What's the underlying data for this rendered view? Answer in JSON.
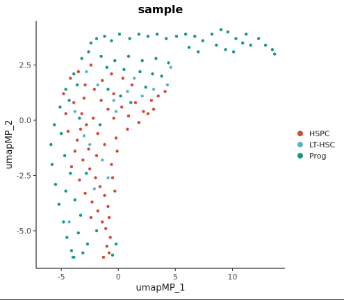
{
  "chart_data": {
    "type": "scatter",
    "title": "sample",
    "xlabel": "umapMP_1",
    "ylabel": "umapMP_2",
    "xlim": [
      -7.2,
      14.6
    ],
    "ylim": [
      -6.7,
      4.5
    ],
    "xticks": [
      -5,
      0,
      5,
      10
    ],
    "yticks": [
      2.5,
      0.0,
      -2.5,
      -5.0
    ],
    "xtick_labels": [
      "-5",
      "0",
      "5",
      "10"
    ],
    "ytick_labels": [
      "2.5",
      "0.0",
      "-2.5",
      "-5.0"
    ],
    "grid": false,
    "legend_position": "right",
    "series": [
      {
        "name": "HSPC",
        "color": "#D04A35",
        "points": [
          [
            -4.2,
            1.9
          ],
          [
            -4.8,
            1.2
          ],
          [
            -3.9,
            0.8
          ],
          [
            -3.2,
            0.3
          ],
          [
            -2.8,
            -0.2
          ],
          [
            -4.4,
            -0.5
          ],
          [
            -3.6,
            -0.9
          ],
          [
            -2.6,
            -1.3
          ],
          [
            -3.1,
            -1.8
          ],
          [
            -2.5,
            -2.2
          ],
          [
            -2.0,
            -2.6
          ],
          [
            -1.6,
            -3.0
          ],
          [
            -1.2,
            -3.4
          ],
          [
            -0.9,
            -3.9
          ],
          [
            -0.8,
            -4.4
          ],
          [
            -1.1,
            -4.9
          ],
          [
            -0.7,
            -5.3
          ],
          [
            -1.0,
            -5.7
          ],
          [
            -0.8,
            -6.0
          ],
          [
            -1.3,
            -6.2
          ],
          [
            -2.1,
            1.4
          ],
          [
            -1.5,
            0.9
          ],
          [
            -0.9,
            0.5
          ],
          [
            -0.4,
            0.1
          ],
          [
            0.3,
            0.6
          ],
          [
            0.9,
            0.2
          ],
          [
            1.5,
            0.8
          ],
          [
            2.2,
            0.4
          ],
          [
            2.9,
            0.9
          ],
          [
            3.5,
            1.1
          ],
          [
            4.1,
            1.3
          ],
          [
            1.2,
            1.6
          ],
          [
            0.4,
            1.9
          ],
          [
            -0.6,
            2.1
          ],
          [
            -1.4,
            1.8
          ],
          [
            -2.9,
            1.6
          ],
          [
            -3.5,
            2.2
          ],
          [
            -2.4,
            2.5
          ],
          [
            0.8,
            -0.4
          ],
          [
            -0.2,
            -0.8
          ],
          [
            -1.8,
            -0.6
          ],
          [
            -2.2,
            0.1
          ],
          [
            -3.8,
            -1.4
          ],
          [
            -4.1,
            -2.1
          ],
          [
            -3.4,
            -2.7
          ],
          [
            -2.9,
            -3.3
          ],
          [
            -2.3,
            -3.7
          ],
          [
            -1.8,
            -4.1
          ],
          [
            -1.4,
            -4.6
          ],
          [
            -0.5,
            -2.6
          ],
          [
            -0.3,
            -3.2
          ],
          [
            -0.6,
            -2.0
          ],
          [
            -0.1,
            -1.4
          ],
          [
            1.8,
            -0.1
          ],
          [
            2.6,
            0.3
          ],
          [
            3.1,
            0.5
          ],
          [
            -1.9,
            -1.6
          ],
          [
            -1.2,
            -1.1
          ],
          [
            -0.4,
            1.2
          ],
          [
            -3.0,
            1.0
          ],
          [
            -4.6,
            0.3
          ],
          [
            -3.3,
            -0.4
          ],
          [
            -2.4,
            -4.4
          ]
        ]
      },
      {
        "name": "LT-HSC",
        "color": "#5AB4C6",
        "points": [
          [
            -2.8,
            2.2
          ],
          [
            -1.8,
            1.6
          ],
          [
            -0.4,
            0.9
          ],
          [
            0.8,
            1.3
          ],
          [
            2.1,
            1.1
          ],
          [
            3.1,
            1.4
          ],
          [
            4.3,
            1.6
          ],
          [
            -3.0,
            -0.7
          ],
          [
            -1.4,
            -1.8
          ],
          [
            -0.9,
            -2.6
          ],
          [
            -2.5,
            -1.1
          ],
          [
            -0.2,
            0.4
          ],
          [
            1.4,
            1.9
          ],
          [
            4.6,
            2.4
          ],
          [
            -3.8,
            0.4
          ],
          [
            -2.1,
            -3.1
          ],
          [
            -4.3,
            -4.6
          ],
          [
            -4.0,
            -6.2
          ]
        ]
      },
      {
        "name": "Prog",
        "color": "#13978A",
        "points": [
          [
            -2.4,
            3.5
          ],
          [
            -1.9,
            3.7
          ],
          [
            -1.2,
            3.8
          ],
          [
            -0.6,
            3.6
          ],
          [
            0.1,
            3.9
          ],
          [
            1.0,
            3.7
          ],
          [
            1.8,
            3.9
          ],
          [
            2.6,
            3.8
          ],
          [
            3.4,
            3.9
          ],
          [
            4.2,
            3.7
          ],
          [
            5.1,
            3.8
          ],
          [
            5.9,
            3.9
          ],
          [
            6.7,
            3.8
          ],
          [
            7.4,
            3.6
          ],
          [
            8.2,
            3.9
          ],
          [
            9.0,
            4.1
          ],
          [
            9.6,
            4.0
          ],
          [
            10.3,
            3.7
          ],
          [
            10.9,
            3.5
          ],
          [
            11.6,
            3.4
          ],
          [
            12.3,
            3.7
          ],
          [
            12.9,
            3.4
          ],
          [
            13.5,
            3.2
          ],
          [
            13.7,
            3.0
          ],
          [
            8.6,
            3.4
          ],
          [
            9.4,
            3.2
          ],
          [
            10.1,
            3.1
          ],
          [
            6.2,
            3.3
          ],
          [
            7.0,
            3.1
          ],
          [
            11.2,
            3.9
          ],
          [
            -3.2,
            2.8
          ],
          [
            -3.9,
            2.1
          ],
          [
            -4.6,
            1.4
          ],
          [
            -5.1,
            0.6
          ],
          [
            -5.6,
            -0.2
          ],
          [
            -5.9,
            -1.1
          ],
          [
            -5.8,
            -2.0
          ],
          [
            -5.5,
            -2.9
          ],
          [
            -5.2,
            -3.8
          ],
          [
            -4.8,
            -4.6
          ],
          [
            -4.5,
            -5.3
          ],
          [
            -4.1,
            -5.9
          ],
          [
            -3.9,
            -6.2
          ],
          [
            -5.0,
            -0.6
          ],
          [
            -4.7,
            -1.6
          ],
          [
            -4.2,
            -2.4
          ],
          [
            -4.6,
            -3.2
          ],
          [
            -3.8,
            -3.6
          ],
          [
            -3.3,
            -4.3
          ],
          [
            -2.6,
            3.1
          ],
          [
            -1.5,
            2.9
          ],
          [
            -0.3,
            2.7
          ],
          [
            0.9,
            2.9
          ],
          [
            2.1,
            2.7
          ],
          [
            3.3,
            2.8
          ],
          [
            4.4,
            2.6
          ],
          [
            -1.0,
            2.4
          ],
          [
            0.5,
            2.3
          ],
          [
            1.9,
            2.2
          ],
          [
            3.0,
            2.1
          ],
          [
            -3.6,
            1.6
          ],
          [
            -4.3,
            0.9
          ],
          [
            -3.4,
            0.1
          ],
          [
            -0.9,
            1.4
          ],
          [
            0.2,
            1.1
          ],
          [
            1.1,
            0.8
          ],
          [
            2.4,
            1.5
          ],
          [
            3.8,
            2.0
          ],
          [
            -1.6,
            -0.2
          ],
          [
            -2.8,
            -2.4
          ],
          [
            -3.5,
            -5.1
          ],
          [
            -2.7,
            -5.6
          ],
          [
            -1.9,
            -5.0
          ],
          [
            -3.1,
            -6.0
          ],
          [
            -0.2,
            -5.6
          ],
          [
            -0.5,
            -6.1
          ]
        ]
      }
    ]
  }
}
